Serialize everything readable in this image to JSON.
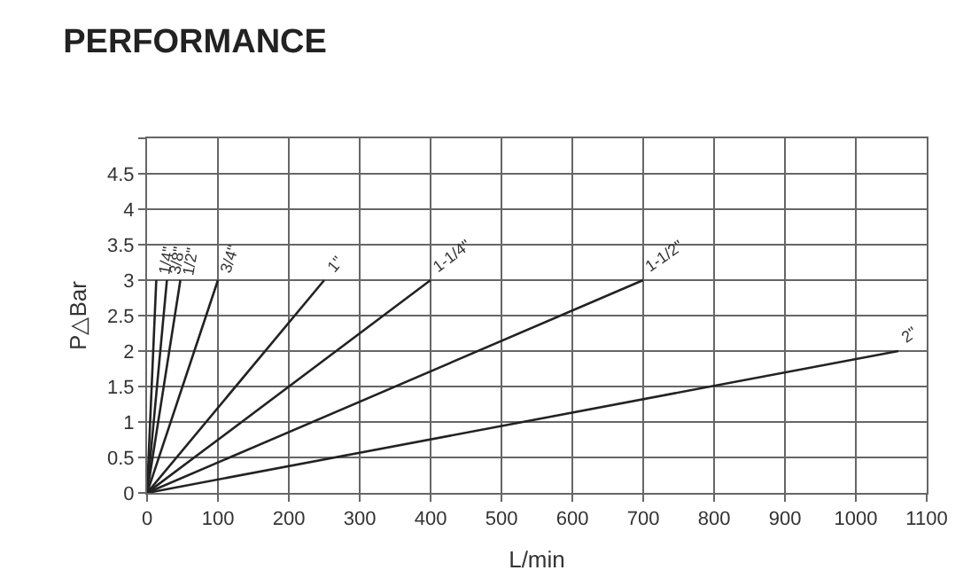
{
  "chart_data": {
    "type": "line",
    "title": "PERFORMANCE",
    "xlabel": "L/min",
    "ylabel": "P△Bar",
    "series": [
      {
        "name": "1/4\"",
        "color": "#222222",
        "x": [
          0,
          13
        ],
        "values": [
          0,
          3
        ]
      },
      {
        "name": "3/8\"",
        "color": "#222222",
        "x": [
          0,
          28
        ],
        "values": [
          0,
          3
        ]
      },
      {
        "name": "1/2\"",
        "color": "#222222",
        "x": [
          0,
          47
        ],
        "values": [
          0,
          3
        ]
      },
      {
        "name": "3/4\"",
        "color": "#222222",
        "x": [
          0,
          100
        ],
        "values": [
          0,
          3
        ]
      },
      {
        "name": "1\"",
        "color": "#222222",
        "x": [
          0,
          250
        ],
        "values": [
          0,
          3
        ]
      },
      {
        "name": "1-1/4\"",
        "color": "#222222",
        "x": [
          0,
          400
        ],
        "values": [
          0,
          3
        ]
      },
      {
        "name": "1-1/2\"",
        "color": "#222222",
        "x": [
          0,
          700
        ],
        "values": [
          0,
          3
        ]
      },
      {
        "name": "2\"",
        "color": "#222222",
        "x": [
          0,
          1060
        ],
        "values": [
          0,
          2
        ]
      }
    ],
    "xlim": [
      0,
      1100
    ],
    "xticks": [
      0,
      100,
      200,
      300,
      400,
      500,
      600,
      700,
      800,
      900,
      1000,
      1100
    ],
    "ylim": [
      0,
      5
    ],
    "yticks": [
      0,
      0.5,
      1,
      1.5,
      2,
      2.5,
      3,
      3.5,
      4,
      4.5,
      {
        "value": 5,
        "label": null
      }
    ],
    "grid": true,
    "legend": false,
    "marker": "none",
    "line_style": "solid"
  }
}
